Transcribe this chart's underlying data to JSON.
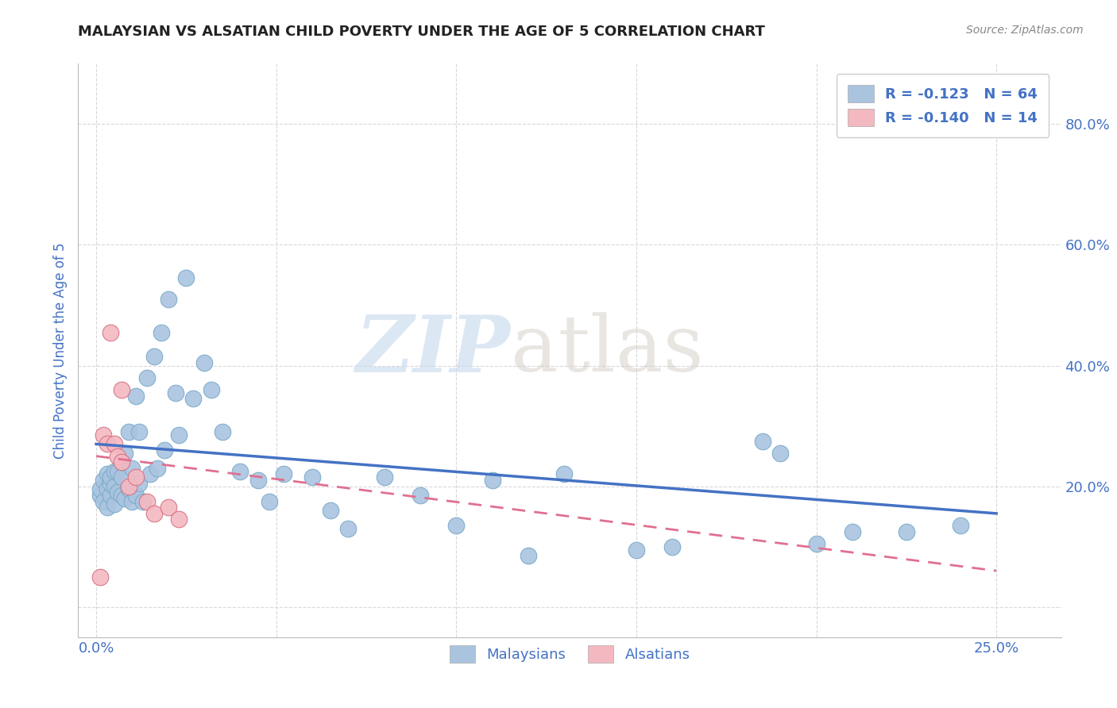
{
  "title": "MALAYSIAN VS ALSATIAN CHILD POVERTY UNDER THE AGE OF 5 CORRELATION CHART",
  "source": "Source: ZipAtlas.com",
  "xlabel_ticks": [
    "0.0%",
    "",
    "",
    "",
    "",
    "25.0%"
  ],
  "xlabel_vals": [
    0.0,
    0.05,
    0.1,
    0.15,
    0.2,
    0.25
  ],
  "ylabel_ticks": [
    "",
    "20.0%",
    "40.0%",
    "60.0%",
    "80.0%"
  ],
  "ylabel_vals": [
    0.0,
    0.2,
    0.4,
    0.6,
    0.8
  ],
  "ylabel_label": "Child Poverty Under the Age of 5",
  "xlim": [
    -0.005,
    0.268
  ],
  "ylim": [
    -0.05,
    0.9
  ],
  "legend_entries": [
    {
      "label": "Malaysians",
      "color": "#aac4e0"
    },
    {
      "label": "Alsatians",
      "color": "#f4b8c1"
    }
  ],
  "legend_R_N": [
    {
      "R": "-0.123",
      "N": "64"
    },
    {
      "R": "-0.140",
      "N": "14"
    }
  ],
  "scatter_blue": {
    "color": "#aac4e0",
    "edgecolor": "#7aaac8",
    "x": [
      0.001,
      0.001,
      0.002,
      0.002,
      0.003,
      0.003,
      0.003,
      0.004,
      0.004,
      0.004,
      0.005,
      0.005,
      0.005,
      0.006,
      0.006,
      0.007,
      0.007,
      0.007,
      0.008,
      0.008,
      0.009,
      0.009,
      0.01,
      0.01,
      0.011,
      0.011,
      0.012,
      0.012,
      0.013,
      0.014,
      0.015,
      0.016,
      0.017,
      0.018,
      0.019,
      0.02,
      0.022,
      0.023,
      0.025,
      0.027,
      0.03,
      0.032,
      0.035,
      0.04,
      0.045,
      0.048,
      0.052,
      0.06,
      0.065,
      0.07,
      0.08,
      0.09,
      0.1,
      0.11,
      0.12,
      0.13,
      0.15,
      0.16,
      0.185,
      0.19,
      0.2,
      0.21,
      0.225,
      0.24
    ],
    "y": [
      0.185,
      0.195,
      0.175,
      0.21,
      0.165,
      0.195,
      0.22,
      0.185,
      0.205,
      0.215,
      0.17,
      0.2,
      0.225,
      0.19,
      0.225,
      0.185,
      0.215,
      0.24,
      0.18,
      0.255,
      0.195,
      0.29,
      0.175,
      0.23,
      0.185,
      0.35,
      0.205,
      0.29,
      0.175,
      0.38,
      0.22,
      0.415,
      0.23,
      0.455,
      0.26,
      0.51,
      0.355,
      0.285,
      0.545,
      0.345,
      0.405,
      0.36,
      0.29,
      0.225,
      0.21,
      0.175,
      0.22,
      0.215,
      0.16,
      0.13,
      0.215,
      0.185,
      0.135,
      0.21,
      0.085,
      0.22,
      0.095,
      0.1,
      0.275,
      0.255,
      0.105,
      0.125,
      0.125,
      0.135
    ]
  },
  "scatter_pink": {
    "color": "#f4b8c1",
    "edgecolor": "#d47080",
    "x": [
      0.001,
      0.002,
      0.003,
      0.004,
      0.005,
      0.006,
      0.007,
      0.007,
      0.009,
      0.011,
      0.014,
      0.016,
      0.02,
      0.023
    ],
    "y": [
      0.05,
      0.285,
      0.27,
      0.455,
      0.27,
      0.25,
      0.24,
      0.36,
      0.2,
      0.215,
      0.175,
      0.155,
      0.165,
      0.145
    ]
  },
  "trendline_blue": {
    "color": "#4472c4",
    "x": [
      0.0,
      0.25
    ],
    "y": [
      0.27,
      0.155
    ]
  },
  "trendline_pink": {
    "color": "#e07090",
    "x": [
      0.0,
      0.25
    ],
    "y": [
      0.25,
      0.06
    ]
  },
  "watermark_zip": "ZIP",
  "watermark_atlas": "atlas",
  "background_color": "#ffffff",
  "grid_color": "#d8d8d8",
  "title_color": "#222222",
  "axis_label_color": "#4472c4",
  "tick_color": "#4472c4"
}
